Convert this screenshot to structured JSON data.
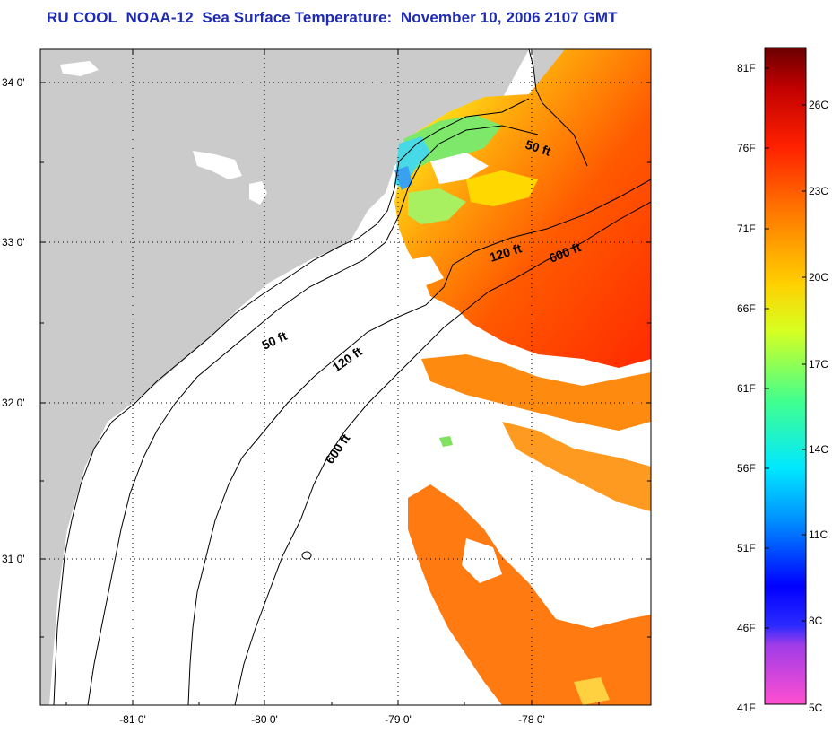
{
  "title": {
    "org": "RU COOL",
    "satellite": "NOAA-12",
    "product": "Sea Surface Temperature:",
    "date": "November 10, 2006 2107 GMT"
  },
  "map": {
    "region": "South Carolina / Georgia shelf",
    "lon_labels": [
      "-81 0'",
      "-80 0'",
      "-79 0'",
      "-78 0'"
    ],
    "lat_labels": [
      "34 0'",
      "33 0'",
      "32 0'",
      "31 0'"
    ],
    "contours": [
      {
        "name": "50 ft",
        "label": "50 ft"
      },
      {
        "name": "120 ft",
        "label": "120 ft"
      },
      {
        "name": "600 ft",
        "label": "600 ft"
      }
    ],
    "colors": {
      "land": "#cbcbcb",
      "no_data": "#ffffff",
      "grid": "#000000",
      "title": "#1f2bb3"
    }
  },
  "colorbar": {
    "fahrenheit_labels": [
      "81F",
      "76F",
      "71F",
      "66F",
      "61F",
      "56F",
      "51F",
      "46F",
      "41F"
    ],
    "celsius_labels": [
      "26C",
      "23C",
      "20C",
      "17C",
      "14C",
      "11C",
      "8C",
      "5C"
    ],
    "range_f": [
      41,
      83
    ],
    "gradient_stops": [
      "#ff4fd0",
      "#8a2be2",
      "#0000ff",
      "#0080ff",
      "#00e0ff",
      "#40ff90",
      "#e0ff20",
      "#ffd000",
      "#ff8000",
      "#ff2000",
      "#c00000",
      "#6a0000"
    ]
  }
}
